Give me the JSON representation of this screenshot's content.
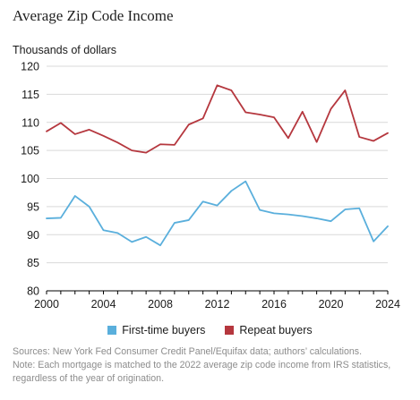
{
  "chart_data": {
    "type": "line",
    "title": "Average Zip Code Income",
    "ylabel": "Thousands of dollars",
    "xlabel": "",
    "xlim": [
      2000,
      2024
    ],
    "ylim": [
      80,
      120
    ],
    "x_ticks": [
      2000,
      2004,
      2008,
      2012,
      2016,
      2020,
      2024
    ],
    "y_ticks": [
      80,
      85,
      90,
      95,
      100,
      105,
      110,
      115,
      120
    ],
    "grid": true,
    "legend_position": "bottom",
    "x": [
      2000,
      2001,
      2002,
      2003,
      2004,
      2005,
      2006,
      2007,
      2008,
      2009,
      2010,
      2011,
      2012,
      2013,
      2014,
      2015,
      2016,
      2017,
      2018,
      2019,
      2020,
      2021,
      2022,
      2023,
      2024
    ],
    "series": [
      {
        "name": "First-time buyers",
        "color": "#5aafdc",
        "values": [
          92.9,
          93.0,
          96.9,
          95.0,
          90.8,
          90.3,
          88.7,
          89.6,
          88.1,
          92.1,
          92.6,
          95.9,
          95.2,
          97.8,
          99.5,
          94.4,
          93.8,
          93.6,
          93.3,
          92.9,
          92.4,
          94.5,
          94.7,
          88.8,
          91.5
        ]
      },
      {
        "name": "Repeat buyers",
        "color": "#b5373e",
        "values": [
          108.4,
          109.9,
          107.9,
          108.7,
          107.6,
          106.4,
          105.0,
          104.6,
          106.1,
          106.0,
          109.6,
          110.7,
          116.6,
          115.7,
          111.8,
          111.4,
          110.9,
          107.2,
          111.9,
          106.5,
          112.4,
          115.7,
          107.4,
          106.7,
          108.1
        ]
      }
    ],
    "axis_color": "#000000",
    "grid_color": "#d9d9d9"
  },
  "notes": {
    "sources": "Sources: New York Fed Consumer Credit Panel/Equifax data; authors’ calculations.",
    "note_line1": "Note: Each mortgage is matched to the 2022 average zip code income from IRS statistics,",
    "note_line2": "regardless of the year of origination."
  }
}
